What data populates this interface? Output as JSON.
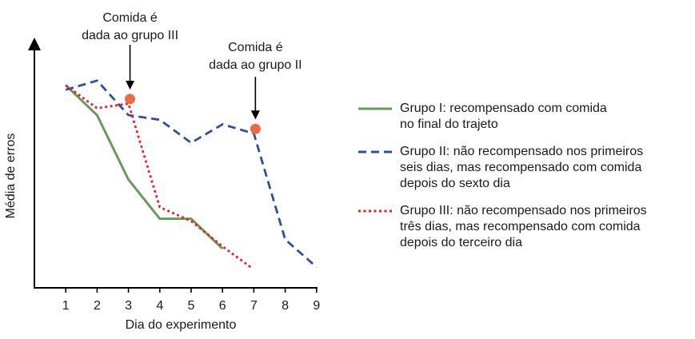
{
  "chart_data": {
    "type": "line",
    "xlabel": "Dia do experimento",
    "ylabel": "Média de erros",
    "x": [
      1,
      2,
      3,
      4,
      5,
      6,
      7,
      8,
      9
    ],
    "xlim": [
      0,
      9
    ],
    "ylim": [
      0,
      100
    ],
    "grid": false,
    "legend_position": "right",
    "series": [
      {
        "name": "Grupo I: recompensado com comida no final do trajeto",
        "name_lines": [
          "Grupo I: recompensado com comida",
          "no final do trajeto"
        ],
        "style": "solid",
        "color": "#6a9a5b",
        "x": [
          1,
          2,
          3,
          4,
          5,
          6
        ],
        "y": [
          88,
          75,
          47,
          30,
          30,
          17
        ]
      },
      {
        "name": "Grupo II: não recompensado nos primeiros seis dias, mas recompensado com comida depois do sexto dia",
        "name_lines": [
          "Grupo II: não recompensado nos primeiros",
          "seis dias, mas recompensado com comida",
          "depois do sexto dia"
        ],
        "style": "dashed",
        "color": "#2d4f9e",
        "x": [
          1,
          2,
          3,
          4,
          5,
          6,
          7,
          8,
          9
        ],
        "y": [
          86,
          90,
          75,
          73,
          63,
          71,
          67,
          21,
          9
        ]
      },
      {
        "name": "Grupo III: não recompensado nos primeiros três dias, mas recompensado com comida depois do terceiro dia",
        "name_lines": [
          "Grupo III: não recompensado nos primeiros",
          "três dias, mas recompensado com comida",
          "depois do terceiro dia"
        ],
        "style": "dotted",
        "color": "#e0242a",
        "x": [
          1,
          2,
          3,
          4,
          5,
          6,
          6.9
        ],
        "y": [
          88,
          78,
          80,
          35,
          29,
          18,
          9
        ]
      }
    ],
    "markers": [
      {
        "x": 3.05,
        "y": 82,
        "color": "#ec6a46"
      },
      {
        "x": 7.05,
        "y": 69,
        "color": "#ec6a46"
      }
    ],
    "annotations": [
      {
        "lines": [
          "Comida é",
          "dada ao grupo III"
        ],
        "x": 3.05
      },
      {
        "lines": [
          "Comida é",
          "dada ao grupo II"
        ],
        "x": 7.05
      }
    ]
  }
}
